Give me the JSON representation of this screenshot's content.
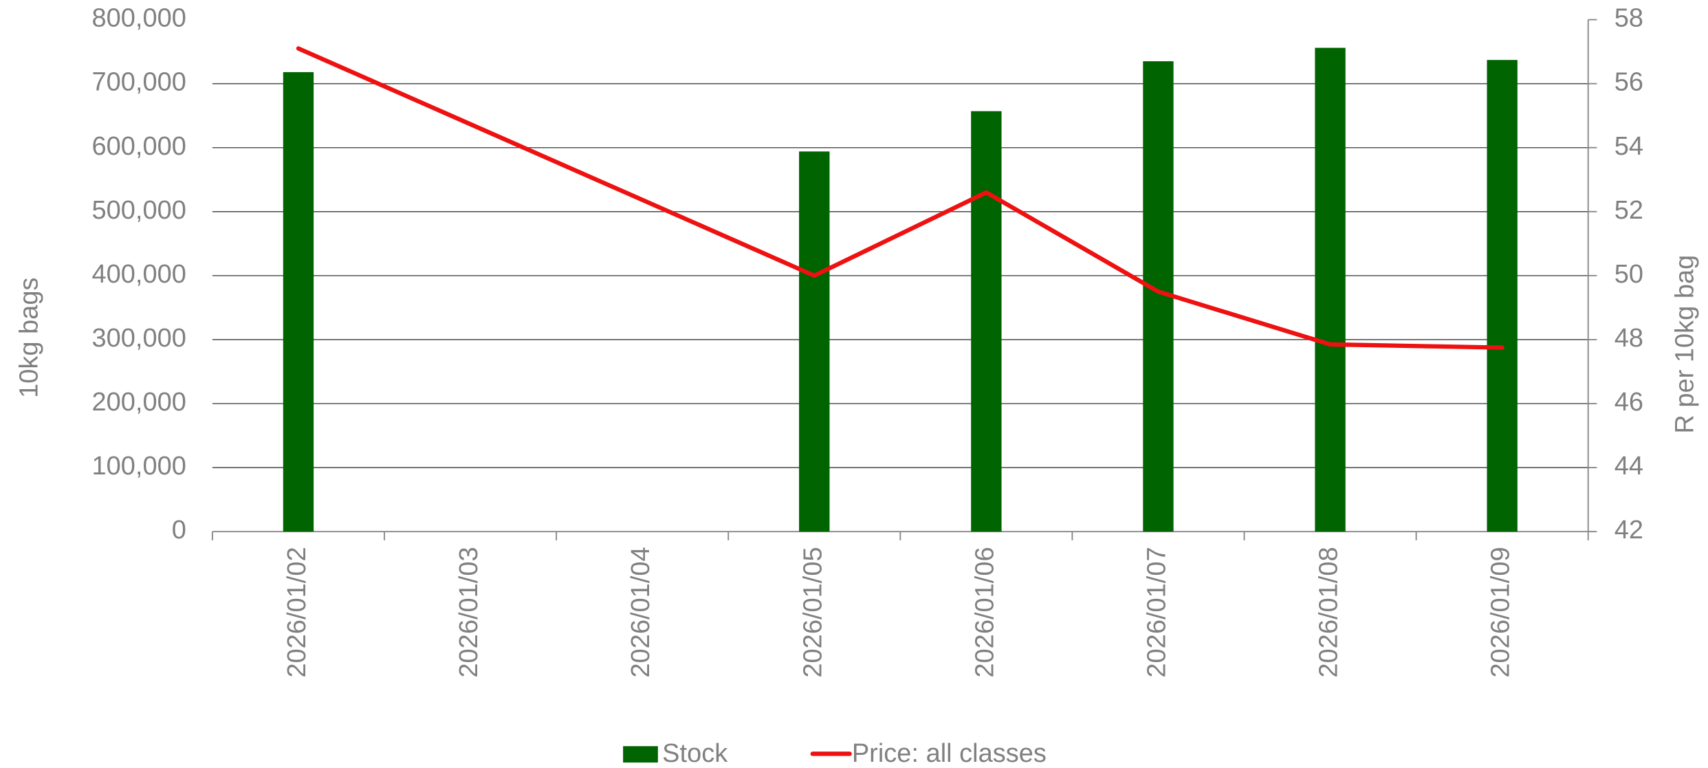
{
  "chart_data": {
    "type": "bar-line",
    "categories": [
      "2026/01/02",
      "2026/01/03",
      "2026/01/04",
      "2026/01/05",
      "2026/01/06",
      "2026/01/07",
      "2026/01/08",
      "2026/01/09"
    ],
    "series": [
      {
        "name": "Stock",
        "type": "bar",
        "color": "#006400",
        "axis": "y",
        "values": [
          718000,
          null,
          null,
          594000,
          657000,
          735000,
          756000,
          737000
        ]
      },
      {
        "name": "Price: all classes",
        "type": "line",
        "color": "#ee1111",
        "axis": "y2",
        "values": [
          57.1,
          null,
          null,
          50.0,
          52.6,
          49.5,
          47.85,
          47.75
        ]
      }
    ],
    "ylabel": "10kg bags",
    "y2label": "R per 10kg bag",
    "ylim": [
      0,
      800000
    ],
    "yticks": [
      0,
      {
        "value": 100000,
        "label": "100,000"
      },
      {
        "value": 200000,
        "label": "200,000"
      },
      {
        "value": 300000,
        "label": "300,000"
      },
      {
        "value": 400000,
        "label": "400,000"
      },
      {
        "value": 500000,
        "label": "500,000"
      },
      {
        "value": 600000,
        "label": "600,000"
      },
      {
        "value": 700000,
        "label": "700,000"
      },
      {
        "value": 800000,
        "label": "800,000"
      }
    ],
    "y2lim": [
      42,
      58
    ],
    "y2ticks": [
      42,
      44,
      46,
      48,
      50,
      52,
      54,
      56,
      58
    ],
    "grid": true,
    "legend": "bottom"
  }
}
